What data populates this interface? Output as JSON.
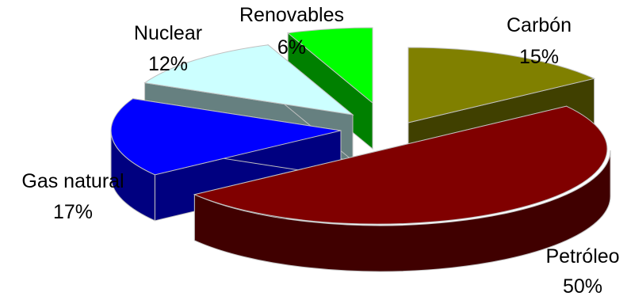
{
  "chart_data": {
    "type": "pie",
    "style": "3d-exploded",
    "slices": [
      {
        "label": "Carbón",
        "value": 15,
        "value_label": "15%",
        "color": "#808000",
        "side_color": "#404000"
      },
      {
        "label": "Petróleo",
        "value": 50,
        "value_label": "50%",
        "color": "#800000",
        "side_color": "#400000"
      },
      {
        "label": "Gas natural",
        "value": 17,
        "value_label": "17%",
        "color": "#0000ff",
        "side_color": "#000080"
      },
      {
        "label": "Nuclear",
        "value": 12,
        "value_label": "12%",
        "color": "#ccffff",
        "side_color": "#668080"
      },
      {
        "label": "Renovables",
        "value": 6,
        "value_label": "6%",
        "color": "#00ff00",
        "side_color": "#008000"
      }
    ]
  }
}
